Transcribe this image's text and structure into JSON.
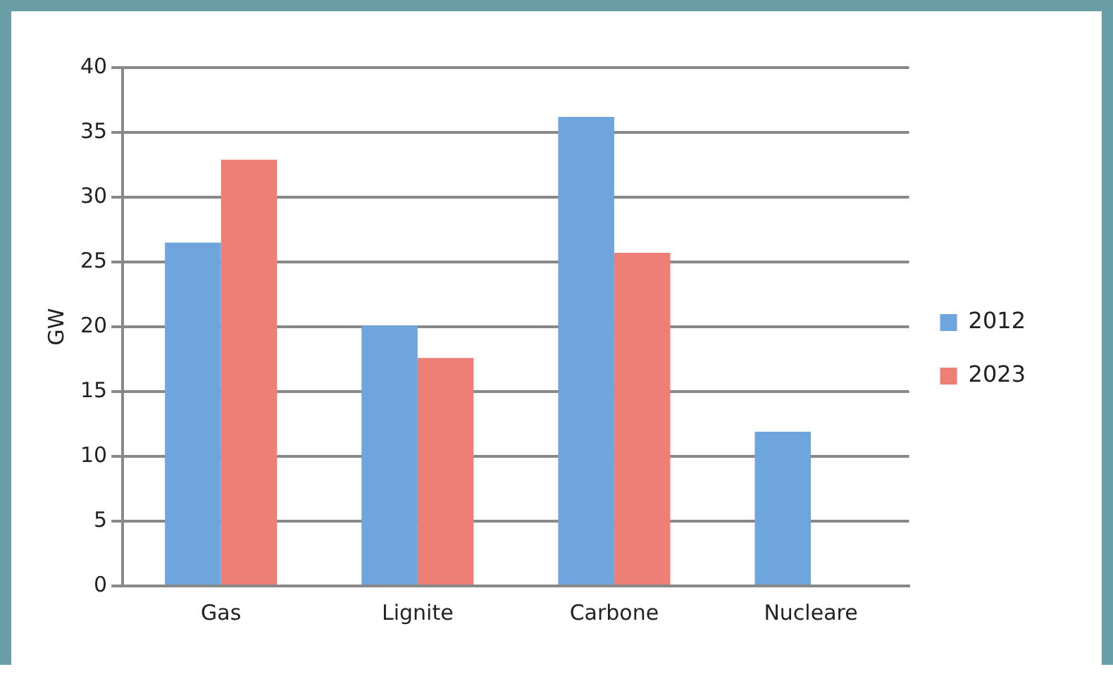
{
  "chart_data": {
    "type": "bar",
    "ylabel": "GW",
    "categories": [
      "Gas",
      "Lignite",
      "Carbone",
      "Nucleare"
    ],
    "series": [
      {
        "name": "2012",
        "color": "#6ea5dc",
        "values": [
          26.5,
          20.1,
          36.2,
          11.9
        ]
      },
      {
        "name": "2023",
        "color": "#ee7f77",
        "values": [
          32.9,
          17.6,
          25.7,
          null
        ]
      }
    ],
    "ylim": [
      0,
      40
    ],
    "yticks": [
      0,
      5,
      10,
      15,
      20,
      25,
      30,
      35,
      40
    ],
    "grid": "y",
    "legend": "right"
  }
}
